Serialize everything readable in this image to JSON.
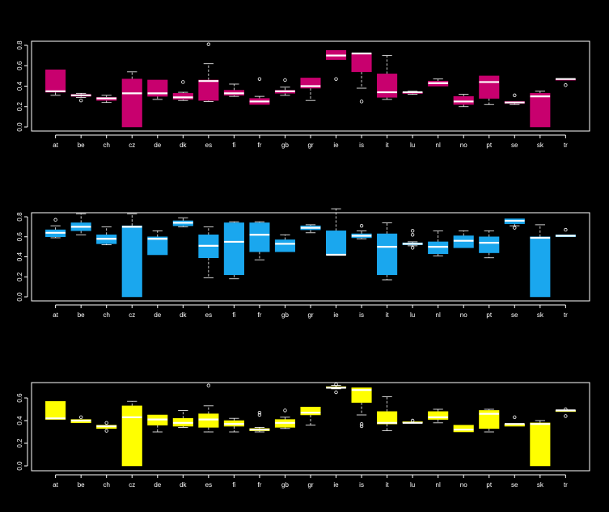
{
  "chart_data": [
    {
      "type": "boxplot",
      "color": "#c8006e",
      "categories": [
        "at",
        "be",
        "ch",
        "cz",
        "de",
        "dk",
        "es",
        "fi",
        "fr",
        "gb",
        "gr",
        "ie",
        "is",
        "it",
        "lu",
        "nl",
        "no",
        "pt",
        "se",
        "sk",
        "tr"
      ],
      "ylim": [
        0,
        0.8
      ],
      "yticks": [
        "0.0",
        "0.2",
        "0.4",
        "0.6",
        "0.8"
      ],
      "boxes": [
        {
          "q1": 0.34,
          "median": 0.35,
          "q3": 0.56,
          "lo": 0.31,
          "hi": 0.56,
          "outliers": []
        },
        {
          "q1": 0.3,
          "median": 0.31,
          "q3": 0.32,
          "lo": 0.29,
          "hi": 0.33,
          "outliers": [
            0.26
          ]
        },
        {
          "q1": 0.26,
          "median": 0.28,
          "q3": 0.29,
          "lo": 0.24,
          "hi": 0.31,
          "outliers": []
        },
        {
          "q1": 0.0,
          "median": 0.33,
          "q3": 0.47,
          "lo": 0.0,
          "hi": 0.54,
          "outliers": []
        },
        {
          "q1": 0.3,
          "median": 0.33,
          "q3": 0.46,
          "lo": 0.27,
          "hi": 0.46,
          "outliers": []
        },
        {
          "q1": 0.27,
          "median": 0.29,
          "q3": 0.33,
          "lo": 0.26,
          "hi": 0.34,
          "outliers": [
            0.44
          ]
        },
        {
          "q1": 0.26,
          "median": 0.45,
          "q3": 0.46,
          "lo": 0.25,
          "hi": 0.62,
          "outliers": [
            0.81
          ]
        },
        {
          "q1": 0.31,
          "median": 0.33,
          "q3": 0.36,
          "lo": 0.3,
          "hi": 0.42,
          "outliers": []
        },
        {
          "q1": 0.22,
          "median": 0.25,
          "q3": 0.28,
          "lo": 0.22,
          "hi": 0.3,
          "outliers": [
            0.47
          ]
        },
        {
          "q1": 0.33,
          "median": 0.35,
          "q3": 0.36,
          "lo": 0.31,
          "hi": 0.39,
          "outliers": [
            0.46
          ]
        },
        {
          "q1": 0.38,
          "median": 0.4,
          "q3": 0.48,
          "lo": 0.26,
          "hi": 0.48,
          "outliers": []
        },
        {
          "q1": 0.66,
          "median": 0.7,
          "q3": 0.75,
          "lo": 0.66,
          "hi": 0.75,
          "outliers": [
            0.47
          ]
        },
        {
          "q1": 0.54,
          "median": 0.72,
          "q3": 0.72,
          "lo": 0.38,
          "hi": 0.72,
          "outliers": [
            0.25
          ]
        },
        {
          "q1": 0.29,
          "median": 0.34,
          "q3": 0.52,
          "lo": 0.27,
          "hi": 0.7,
          "outliers": []
        },
        {
          "q1": 0.33,
          "median": 0.34,
          "q3": 0.34,
          "lo": 0.32,
          "hi": 0.35,
          "outliers": []
        },
        {
          "q1": 0.4,
          "median": 0.43,
          "q3": 0.45,
          "lo": 0.4,
          "hi": 0.47,
          "outliers": []
        },
        {
          "q1": 0.22,
          "median": 0.25,
          "q3": 0.3,
          "lo": 0.2,
          "hi": 0.32,
          "outliers": []
        },
        {
          "q1": 0.28,
          "median": 0.44,
          "q3": 0.5,
          "lo": 0.22,
          "hi": 0.5,
          "outliers": []
        },
        {
          "q1": 0.23,
          "median": 0.24,
          "q3": 0.25,
          "lo": 0.22,
          "hi": 0.25,
          "outliers": [
            0.31
          ]
        },
        {
          "q1": 0.0,
          "median": 0.3,
          "q3": 0.33,
          "lo": 0.0,
          "hi": 0.35,
          "outliers": []
        },
        {
          "q1": 0.46,
          "median": 0.47,
          "q3": 0.47,
          "lo": 0.46,
          "hi": 0.47,
          "outliers": [
            0.41
          ]
        }
      ]
    },
    {
      "type": "boxplot",
      "color": "#1aa7ee",
      "categories": [
        "at",
        "be",
        "ch",
        "cz",
        "de",
        "dk",
        "es",
        "fi",
        "fr",
        "gb",
        "gr",
        "ie",
        "is",
        "it",
        "lu",
        "nl",
        "no",
        "pt",
        "se",
        "sk",
        "tr"
      ],
      "ylim": [
        0,
        0.8
      ],
      "yticks": [
        "0.0",
        "0.2",
        "0.4",
        "0.6",
        "0.8"
      ],
      "boxes": [
        {
          "q1": 0.6,
          "median": 0.64,
          "q3": 0.67,
          "lo": 0.59,
          "hi": 0.71,
          "outliers": [
            0.77
          ]
        },
        {
          "q1": 0.66,
          "median": 0.7,
          "q3": 0.74,
          "lo": 0.62,
          "hi": 0.83,
          "outliers": []
        },
        {
          "q1": 0.53,
          "median": 0.58,
          "q3": 0.62,
          "lo": 0.52,
          "hi": 0.7,
          "outliers": []
        },
        {
          "q1": 0.0,
          "median": 0.7,
          "q3": 0.71,
          "lo": 0.0,
          "hi": 0.83,
          "outliers": []
        },
        {
          "q1": 0.42,
          "median": 0.58,
          "q3": 0.6,
          "lo": 0.42,
          "hi": 0.66,
          "outliers": []
        },
        {
          "q1": 0.71,
          "median": 0.74,
          "q3": 0.76,
          "lo": 0.7,
          "hi": 0.79,
          "outliers": []
        },
        {
          "q1": 0.39,
          "median": 0.51,
          "q3": 0.62,
          "lo": 0.19,
          "hi": 0.7,
          "outliers": []
        },
        {
          "q1": 0.22,
          "median": 0.55,
          "q3": 0.74,
          "lo": 0.18,
          "hi": 0.75,
          "outliers": []
        },
        {
          "q1": 0.45,
          "median": 0.62,
          "q3": 0.74,
          "lo": 0.37,
          "hi": 0.75,
          "outliers": []
        },
        {
          "q1": 0.45,
          "median": 0.53,
          "q3": 0.57,
          "lo": 0.45,
          "hi": 0.62,
          "outliers": []
        },
        {
          "q1": 0.67,
          "median": 0.69,
          "q3": 0.71,
          "lo": 0.64,
          "hi": 0.72,
          "outliers": []
        },
        {
          "q1": 0.42,
          "median": 0.42,
          "q3": 0.66,
          "lo": 0.42,
          "hi": 0.88,
          "outliers": []
        },
        {
          "q1": 0.59,
          "median": 0.61,
          "q3": 0.63,
          "lo": 0.58,
          "hi": 0.66,
          "outliers": [
            0.71
          ]
        },
        {
          "q1": 0.22,
          "median": 0.5,
          "q3": 0.63,
          "lo": 0.17,
          "hi": 0.74,
          "outliers": []
        },
        {
          "q1": 0.52,
          "median": 0.53,
          "q3": 0.54,
          "lo": 0.51,
          "hi": 0.55,
          "outliers": [
            0.49,
            0.62,
            0.66
          ]
        },
        {
          "q1": 0.43,
          "median": 0.5,
          "q3": 0.55,
          "lo": 0.41,
          "hi": 0.66,
          "outliers": []
        },
        {
          "q1": 0.49,
          "median": 0.56,
          "q3": 0.61,
          "lo": 0.49,
          "hi": 0.66,
          "outliers": []
        },
        {
          "q1": 0.44,
          "median": 0.54,
          "q3": 0.6,
          "lo": 0.39,
          "hi": 0.66,
          "outliers": []
        },
        {
          "q1": 0.73,
          "median": 0.76,
          "q3": 0.78,
          "lo": 0.71,
          "hi": 0.78,
          "outliers": [
            0.69
          ]
        },
        {
          "q1": 0.0,
          "median": 0.59,
          "q3": 0.6,
          "lo": 0.0,
          "hi": 0.72,
          "outliers": []
        },
        {
          "q1": 0.6,
          "median": 0.61,
          "q3": 0.62,
          "lo": 0.6,
          "hi": 0.62,
          "outliers": [
            0.67
          ]
        }
      ]
    },
    {
      "type": "boxplot",
      "color": "#ffff00",
      "categories": [
        "at",
        "be",
        "ch",
        "cz",
        "de",
        "dk",
        "es",
        "fi",
        "fr",
        "gb",
        "gr",
        "ie",
        "is",
        "it",
        "lu",
        "nl",
        "no",
        "pt",
        "se",
        "sk",
        "tr"
      ],
      "ylim": [
        0,
        0.7
      ],
      "yticks": [
        "0.0",
        "0.2",
        "0.4",
        "0.6"
      ],
      "boxes": [
        {
          "q1": 0.41,
          "median": 0.42,
          "q3": 0.57,
          "lo": 0.41,
          "hi": 0.57,
          "outliers": []
        },
        {
          "q1": 0.38,
          "median": 0.4,
          "q3": 0.41,
          "lo": 0.38,
          "hi": 0.41,
          "outliers": [
            0.43
          ]
        },
        {
          "q1": 0.33,
          "median": 0.35,
          "q3": 0.36,
          "lo": 0.33,
          "hi": 0.36,
          "outliers": [
            0.31,
            0.38
          ]
        },
        {
          "q1": 0.0,
          "median": 0.43,
          "q3": 0.53,
          "lo": 0.0,
          "hi": 0.57,
          "outliers": []
        },
        {
          "q1": 0.36,
          "median": 0.41,
          "q3": 0.45,
          "lo": 0.3,
          "hi": 0.45,
          "outliers": []
        },
        {
          "q1": 0.35,
          "median": 0.38,
          "q3": 0.42,
          "lo": 0.34,
          "hi": 0.49,
          "outliers": []
        },
        {
          "q1": 0.34,
          "median": 0.41,
          "q3": 0.46,
          "lo": 0.3,
          "hi": 0.53,
          "outliers": [
            0.71
          ]
        },
        {
          "q1": 0.35,
          "median": 0.37,
          "q3": 0.4,
          "lo": 0.3,
          "hi": 0.42,
          "outliers": []
        },
        {
          "q1": 0.31,
          "median": 0.32,
          "q3": 0.33,
          "lo": 0.3,
          "hi": 0.34,
          "outliers": [
            0.45,
            0.47
          ]
        },
        {
          "q1": 0.34,
          "median": 0.38,
          "q3": 0.41,
          "lo": 0.33,
          "hi": 0.43,
          "outliers": [
            0.49
          ]
        },
        {
          "q1": 0.45,
          "median": 0.47,
          "q3": 0.52,
          "lo": 0.36,
          "hi": 0.52,
          "outliers": []
        },
        {
          "q1": 0.69,
          "median": 0.69,
          "q3": 0.7,
          "lo": 0.68,
          "hi": 0.71,
          "outliers": [
            0.65,
            0.72
          ]
        },
        {
          "q1": 0.56,
          "median": 0.67,
          "q3": 0.69,
          "lo": 0.45,
          "hi": 0.69,
          "outliers": [
            0.35,
            0.37
          ]
        },
        {
          "q1": 0.37,
          "median": 0.38,
          "q3": 0.48,
          "lo": 0.31,
          "hi": 0.61,
          "outliers": []
        },
        {
          "q1": 0.38,
          "median": 0.38,
          "q3": 0.39,
          "lo": 0.38,
          "hi": 0.39,
          "outliers": [
            0.4
          ]
        },
        {
          "q1": 0.41,
          "median": 0.43,
          "q3": 0.48,
          "lo": 0.38,
          "hi": 0.5,
          "outliers": []
        },
        {
          "q1": 0.3,
          "median": 0.32,
          "q3": 0.36,
          "lo": 0.3,
          "hi": 0.36,
          "outliers": []
        },
        {
          "q1": 0.33,
          "median": 0.46,
          "q3": 0.49,
          "lo": 0.3,
          "hi": 0.5,
          "outliers": []
        },
        {
          "q1": 0.35,
          "median": 0.37,
          "q3": 0.37,
          "lo": 0.35,
          "hi": 0.37,
          "outliers": [
            0.43
          ]
        },
        {
          "q1": 0.0,
          "median": 0.37,
          "q3": 0.38,
          "lo": 0.0,
          "hi": 0.4,
          "outliers": []
        },
        {
          "q1": 0.49,
          "median": 0.49,
          "q3": 0.49,
          "lo": 0.49,
          "hi": 0.49,
          "outliers": [
            0.44,
            0.5
          ]
        }
      ]
    }
  ]
}
